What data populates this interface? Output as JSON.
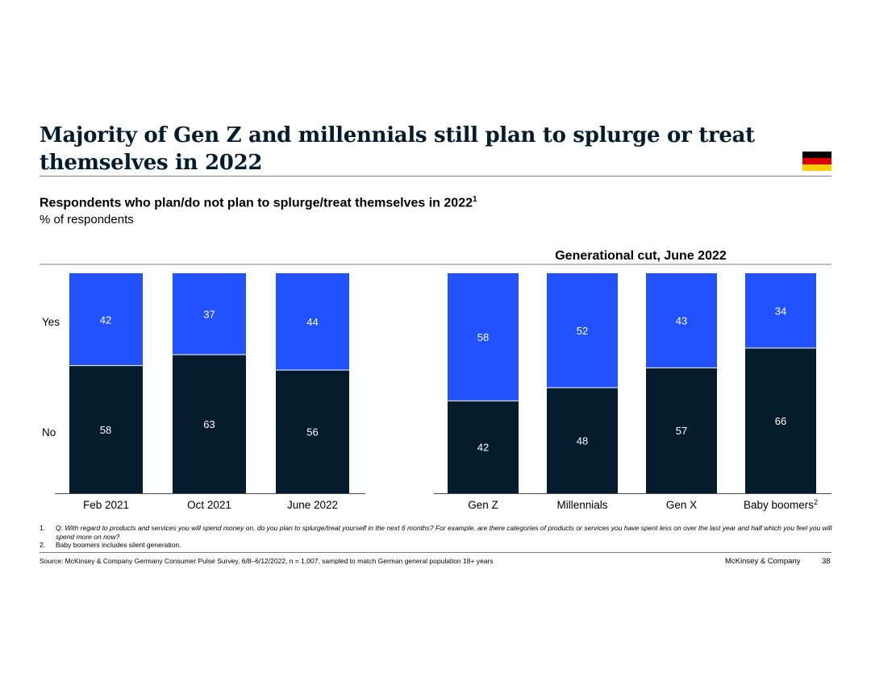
{
  "title": "Majority of Gen Z and millennials still plan to splurge or treat themselves in 2022",
  "subtitle": "Respondents who plan/do not plan to splurge/treat themselves in 2022",
  "subtitle_sup": "1",
  "unit": "% of respondents",
  "flag_colors": [
    "#000000",
    "#dd0000",
    "#ffce00"
  ],
  "colors": {
    "yes": "#2251ff",
    "no": "#051c2c",
    "title": "#051c2c"
  },
  "chart_data": [
    {
      "type": "bar",
      "stacked": true,
      "normalized_percent": true,
      "title": "",
      "row_labels": {
        "yes": "Yes",
        "no": "No"
      },
      "categories": [
        "Feb 2021",
        "Oct 2021",
        "June 2022"
      ],
      "category_sups": [
        "",
        "",
        ""
      ],
      "series": [
        {
          "name": "No",
          "values": [
            58,
            63,
            56
          ]
        },
        {
          "name": "Yes",
          "values": [
            42,
            37,
            44
          ]
        }
      ]
    },
    {
      "type": "bar",
      "stacked": true,
      "normalized_percent": true,
      "title": "Generational cut, June 2022",
      "categories": [
        "Gen Z",
        "Millennials",
        "Gen X",
        "Baby boomers"
      ],
      "category_sups": [
        "",
        "",
        "",
        "2"
      ],
      "series": [
        {
          "name": "No",
          "values": [
            42,
            48,
            57,
            66
          ]
        },
        {
          "name": "Yes",
          "values": [
            58,
            52,
            43,
            34
          ]
        }
      ]
    }
  ],
  "footnotes": [
    {
      "num": "1.",
      "prefix": "Q: ",
      "text": "With regard to products and services you will spend money on, do you plan to splurge/treat yourself in the next 6 months? For example, are there categories of products or services you have spent less on over the last year and half which you feel you will spend more on now?"
    },
    {
      "num": "2.",
      "prefix": "",
      "text": "Baby boomers includes silent generation."
    }
  ],
  "source": "Source: McKinsey & Company Germany Consumer Pulse Survey, 6/8–6/12/2022, n = 1,007, sampled to match German general population 18+ years",
  "brand": "McKinsey & Company",
  "page_number": "38"
}
